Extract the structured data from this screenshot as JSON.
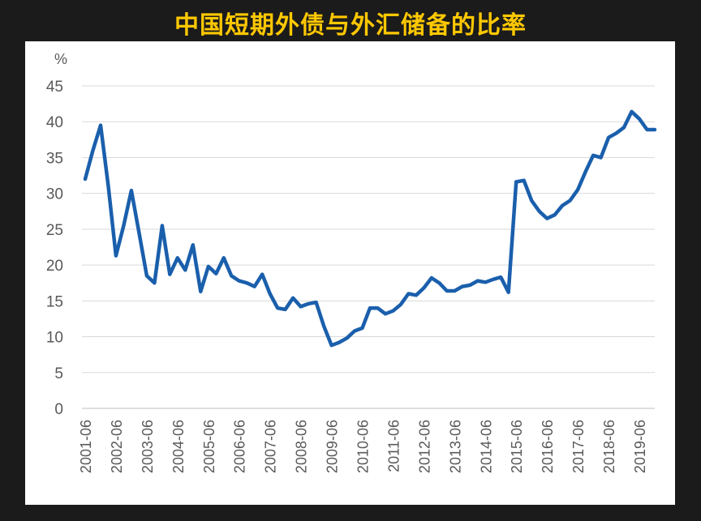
{
  "title": "中国短期外债与外汇储备的比率",
  "chart_data": {
    "type": "line",
    "title": "中国短期外债与外汇储备的比率",
    "ylabel": "%",
    "xlabel": "",
    "ylim": [
      0,
      45
    ],
    "yticks": [
      0,
      5,
      10,
      15,
      20,
      25,
      30,
      35,
      40,
      45
    ],
    "xticks": [
      "2001-06",
      "2002-06",
      "2003-06",
      "2004-06",
      "2005-06",
      "2006-06",
      "2007-06",
      "2008-06",
      "2009-06",
      "2010-06",
      "2011-06",
      "2012-06",
      "2013-06",
      "2014-06",
      "2015-06",
      "2016-06",
      "2017-06",
      "2018-06",
      "2019-06"
    ],
    "grid": true,
    "legend": "none",
    "line_color": "#1a5fac",
    "series": [
      {
        "values": [
          [
            "2001-06",
            32
          ],
          [
            "2001-09",
            36
          ],
          [
            "2001-12",
            39.5
          ],
          [
            "2002-03",
            31
          ],
          [
            "2002-06",
            21.3
          ],
          [
            "2002-09",
            25.5
          ],
          [
            "2002-12",
            30.4
          ],
          [
            "2003-03",
            24.5
          ],
          [
            "2003-06",
            18.5
          ],
          [
            "2003-09",
            17.5
          ],
          [
            "2003-12",
            25.5
          ],
          [
            "2004-03",
            18.7
          ],
          [
            "2004-06",
            21
          ],
          [
            "2004-09",
            19.3
          ],
          [
            "2004-12",
            22.8
          ],
          [
            "2005-03",
            16.3
          ],
          [
            "2005-06",
            19.8
          ],
          [
            "2005-09",
            18.8
          ],
          [
            "2005-12",
            21
          ],
          [
            "2006-03",
            18.5
          ],
          [
            "2006-06",
            17.8
          ],
          [
            "2006-09",
            17.5
          ],
          [
            "2006-12",
            17
          ],
          [
            "2007-03",
            18.7
          ],
          [
            "2007-06",
            16
          ],
          [
            "2007-09",
            14
          ],
          [
            "2007-12",
            13.8
          ],
          [
            "2008-03",
            15.4
          ],
          [
            "2008-06",
            14.2
          ],
          [
            "2008-09",
            14.6
          ],
          [
            "2008-12",
            14.8
          ],
          [
            "2009-03",
            11.5
          ],
          [
            "2009-06",
            8.8
          ],
          [
            "2009-09",
            9.2
          ],
          [
            "2009-12",
            9.8
          ],
          [
            "2010-03",
            10.8
          ],
          [
            "2010-06",
            11.2
          ],
          [
            "2010-09",
            14
          ],
          [
            "2010-12",
            14
          ],
          [
            "2011-03",
            13.2
          ],
          [
            "2011-06",
            13.6
          ],
          [
            "2011-09",
            14.5
          ],
          [
            "2011-12",
            16
          ],
          [
            "2012-03",
            15.8
          ],
          [
            "2012-06",
            16.8
          ],
          [
            "2012-09",
            18.2
          ],
          [
            "2012-12",
            17.5
          ],
          [
            "2013-03",
            16.4
          ],
          [
            "2013-06",
            16.4
          ],
          [
            "2013-09",
            17
          ],
          [
            "2013-12",
            17.2
          ],
          [
            "2014-03",
            17.8
          ],
          [
            "2014-06",
            17.6
          ],
          [
            "2014-09",
            18
          ],
          [
            "2014-12",
            18.3
          ],
          [
            "2015-03",
            16.2
          ],
          [
            "2015-06",
            31.6
          ],
          [
            "2015-09",
            31.8
          ],
          [
            "2015-12",
            29
          ],
          [
            "2016-03",
            27.5
          ],
          [
            "2016-06",
            26.5
          ],
          [
            "2016-09",
            27
          ],
          [
            "2016-12",
            28.3
          ],
          [
            "2017-03",
            29
          ],
          [
            "2017-06",
            30.5
          ],
          [
            "2017-09",
            33
          ],
          [
            "2017-12",
            35.3
          ],
          [
            "2018-03",
            35
          ],
          [
            "2018-06",
            37.8
          ],
          [
            "2018-09",
            38.4
          ],
          [
            "2018-12",
            39.2
          ],
          [
            "2019-03",
            41.4
          ],
          [
            "2019-06",
            40.4
          ],
          [
            "2019-09",
            38.9
          ],
          [
            "2019-12",
            38.9
          ]
        ]
      }
    ]
  }
}
